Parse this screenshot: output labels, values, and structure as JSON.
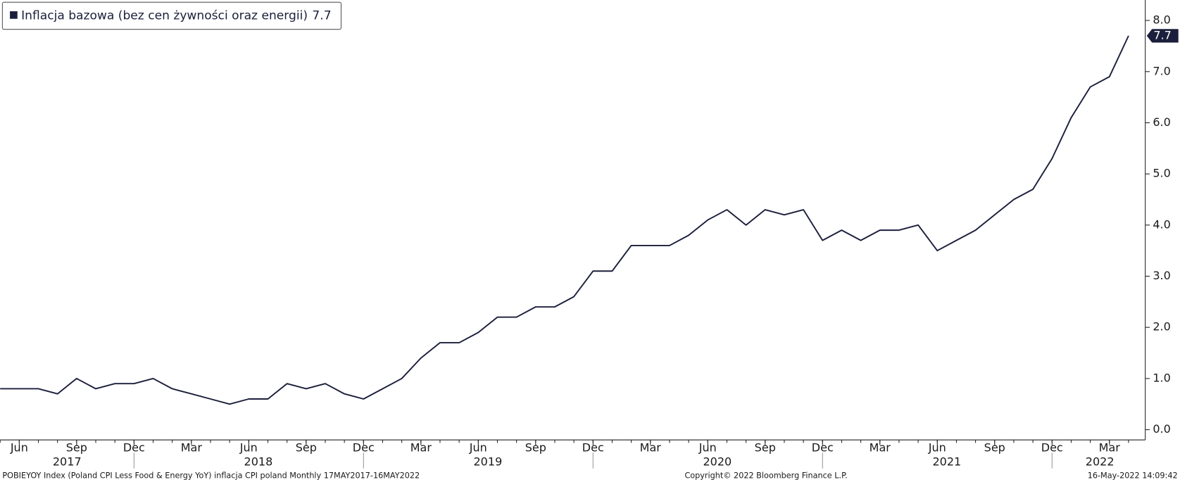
{
  "chart_data": {
    "type": "line",
    "x": [
      "2017-05",
      "2017-06",
      "2017-07",
      "2017-08",
      "2017-09",
      "2017-10",
      "2017-11",
      "2017-12",
      "2018-01",
      "2018-02",
      "2018-03",
      "2018-04",
      "2018-05",
      "2018-06",
      "2018-07",
      "2018-08",
      "2018-09",
      "2018-10",
      "2018-11",
      "2018-12",
      "2019-01",
      "2019-02",
      "2019-03",
      "2019-04",
      "2019-05",
      "2019-06",
      "2019-07",
      "2019-08",
      "2019-09",
      "2019-10",
      "2019-11",
      "2019-12",
      "2020-01",
      "2020-02",
      "2020-03",
      "2020-04",
      "2020-05",
      "2020-06",
      "2020-07",
      "2020-08",
      "2020-09",
      "2020-10",
      "2020-11",
      "2020-12",
      "2021-01",
      "2021-02",
      "2021-03",
      "2021-04",
      "2021-05",
      "2021-06",
      "2021-07",
      "2021-08",
      "2021-09",
      "2021-10",
      "2021-11",
      "2021-12",
      "2022-01",
      "2022-02",
      "2022-03",
      "2022-04"
    ],
    "series": [
      {
        "name": "Inflacja bazowa (bez cen żywności oraz energii)",
        "color": "#1b1f3b",
        "values": [
          0.8,
          0.8,
          0.8,
          0.7,
          1.0,
          0.8,
          0.9,
          0.9,
          1.0,
          0.8,
          0.7,
          0.6,
          0.5,
          0.6,
          0.6,
          0.9,
          0.8,
          0.9,
          0.7,
          0.6,
          0.8,
          1.0,
          1.4,
          1.7,
          1.7,
          1.9,
          2.2,
          2.2,
          2.4,
          2.4,
          2.6,
          3.1,
          3.1,
          3.6,
          3.6,
          3.6,
          3.8,
          4.1,
          4.3,
          4.0,
          4.3,
          4.2,
          4.3,
          3.7,
          3.9,
          3.7,
          3.9,
          3.9,
          4.0,
          3.5,
          3.7,
          3.9,
          4.2,
          4.5,
          4.7,
          5.3,
          6.1,
          6.7,
          6.9,
          7.7
        ]
      }
    ],
    "ylim": [
      -0.2,
      8.4
    ],
    "yticks": [
      {
        "value": 0,
        "label": "0.0"
      },
      {
        "value": 1,
        "label": "1.0"
      },
      {
        "value": 2,
        "label": "2.0"
      },
      {
        "value": 3,
        "label": "3.0"
      },
      {
        "value": 4,
        "label": "4.0"
      },
      {
        "value": 5,
        "label": "5.0"
      },
      {
        "value": 6,
        "label": "6.0"
      },
      {
        "value": 7,
        "label": "7.0"
      },
      {
        "value": 8,
        "label": "8.0"
      }
    ],
    "xticks": [
      {
        "value": "2017-06",
        "label": "Jun"
      },
      {
        "value": "2017-09",
        "label": "Sep"
      },
      {
        "value": "2017-12",
        "label": "Dec"
      },
      {
        "value": "2018-03",
        "label": "Mar"
      },
      {
        "value": "2018-06",
        "label": "Jun"
      },
      {
        "value": "2018-09",
        "label": "Sep"
      },
      {
        "value": "2018-12",
        "label": "Dec"
      },
      {
        "value": "2019-03",
        "label": "Mar"
      },
      {
        "value": "2019-06",
        "label": "Jun"
      },
      {
        "value": "2019-09",
        "label": "Sep"
      },
      {
        "value": "2019-12",
        "label": "Dec"
      },
      {
        "value": "2020-03",
        "label": "Mar"
      },
      {
        "value": "2020-06",
        "label": "Jun"
      },
      {
        "value": "2020-09",
        "label": "Sep"
      },
      {
        "value": "2020-12",
        "label": "Dec"
      },
      {
        "value": "2021-03",
        "label": "Mar"
      },
      {
        "value": "2021-06",
        "label": "Jun"
      },
      {
        "value": "2021-09",
        "label": "Sep"
      },
      {
        "value": "2021-12",
        "label": "Dec"
      },
      {
        "value": "2022-03",
        "label": "Mar"
      }
    ],
    "years": [
      2017,
      2018,
      2019,
      2020,
      2021,
      2022
    ],
    "footer_left": "POBIEYOY Index (Poland CPI Less Food & Energy YoY) inflacja CPI poland  Monthly 17MAY2017-16MAY2022",
    "footer_center": "Copyright© 2022 Bloomberg Finance L.P.",
    "footer_right": "16-May-2022 14:09:42"
  }
}
